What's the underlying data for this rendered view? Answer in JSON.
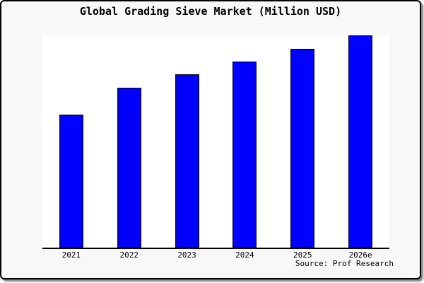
{
  "chart_data": {
    "type": "bar",
    "title": "Global Grading Sieve Market (Million USD)",
    "categories": [
      "2021",
      "2022",
      "2023",
      "2024",
      "2025",
      "2026e"
    ],
    "values": [
      62.7,
      75.2,
      81.7,
      87.7,
      93.7,
      100
    ],
    "note": "No y-axis ticks or data labels are shown; values are estimated bar heights as percent of the tallest (2026e) bar",
    "xlabel": "",
    "ylabel": "",
    "ylim": [
      0,
      100
    ],
    "grid": false,
    "legend": false,
    "bar_color": "#0000ff",
    "bar_border_color": "#000000",
    "plot_background": "#ffffff",
    "frame_background": "#f8f8f8",
    "frame_border_color": "#000000"
  },
  "footer": {
    "source_label": "Source: Prof Research"
  }
}
